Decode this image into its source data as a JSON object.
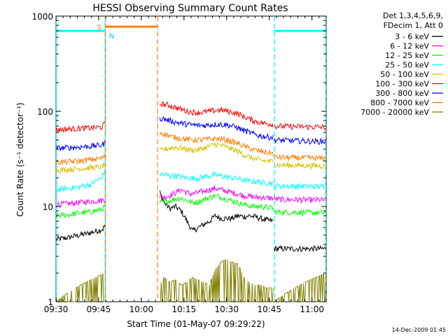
{
  "chart_data": {
    "type": "line",
    "title": "HESSI Observing Summary Count Rates",
    "xlabel": "Start Time (01-May-07 09:29:22)",
    "ylabel": "Count Rate (s⁻¹ detector⁻¹)",
    "ylog": true,
    "ylim": [
      1,
      1000
    ],
    "xlim": [
      30,
      125
    ],
    "x_tick_labels": [
      "09:30",
      "09:45",
      "10:00",
      "10:15",
      "10:30",
      "10:45",
      "11:00"
    ],
    "x_tick_values": [
      30,
      45,
      60,
      75,
      90,
      105,
      120
    ],
    "y_tick_labels": [
      "1",
      "10",
      "100",
      "1000"
    ],
    "y_tick_values": [
      1,
      10,
      100,
      1000
    ],
    "legend_header": [
      "Det 1,3,4,5,6,9,",
      "FDecim 1, Att 0"
    ],
    "legend_position": "top-right",
    "timestamp": "14-Dec-2009 01:45",
    "markers": {
      "night": [
        {
          "x0": 30,
          "x1": 47.4
        },
        {
          "x0": 106.7,
          "x1": 125
        }
      ],
      "saa": [
        {
          "x0": 47.4,
          "x1": 65.7
        }
      ],
      "flag_level": 700,
      "s_label": "S",
      "n_label": "N"
    },
    "series": [
      {
        "name": "3 - 6 keV",
        "color": "#000000",
        "segments": [
          {
            "x": [
              30,
              34,
              38,
              41,
              44,
              46.5,
              47.4
            ],
            "y": [
              4.5,
              4.7,
              5,
              5.2,
              5.5,
              5.8,
              6.5
            ]
          },
          {
            "x": [
              66.5,
              68,
              70,
              72,
              74,
              76,
              78,
              80,
              82,
              84,
              86,
              88,
              90,
              92,
              94,
              96,
              98,
              100,
              102,
              104,
              106.5
            ],
            "y": [
              14,
              11,
              9.5,
              10,
              9,
              7,
              5.5,
              6,
              6.5,
              7,
              8,
              7.5,
              7.5,
              7.5,
              8,
              7.8,
              8,
              7.8,
              7.5,
              7.2,
              7.0
            ]
          },
          {
            "x": [
              106.7,
              110,
              115,
              120,
              125
            ],
            "y": [
              3.6,
              3.6,
              3.6,
              3.6,
              3.6
            ]
          }
        ]
      },
      {
        "name": "6 - 12 keV",
        "color": "#ff00ff",
        "segments": [
          {
            "x": [
              30,
              34,
              38,
              42,
              46,
              47.4
            ],
            "y": [
              10.5,
              10.7,
              11,
              11.3,
              11.6,
              12
            ]
          },
          {
            "x": [
              66.5,
              68,
              70,
              72,
              74,
              76,
              78,
              80,
              82,
              84,
              86,
              88,
              90,
              92,
              94,
              96,
              98,
              100,
              102,
              104,
              106.5
            ],
            "y": [
              13,
              12.5,
              13,
              14,
              15,
              14,
              13.5,
              14,
              14.5,
              15,
              15.5,
              15,
              14.5,
              14,
              13.5,
              13,
              12.8,
              12.5,
              12.5,
              12.3,
              12.2
            ]
          },
          {
            "x": [
              106.7,
              110,
              115,
              120,
              125
            ],
            "y": [
              12,
              11.8,
              11.8,
              11.7,
              11.7
            ]
          }
        ]
      },
      {
        "name": "12 - 25 keV",
        "color": "#00ff00",
        "segments": [
          {
            "x": [
              30,
              34,
              38,
              42,
              46,
              47.4
            ],
            "y": [
              8,
              8.2,
              8.5,
              8.8,
              9.3,
              10
            ]
          },
          {
            "x": [
              66.5,
              68,
              70,
              72,
              74,
              76,
              78,
              80,
              82,
              84,
              86,
              88,
              90,
              92,
              94,
              96,
              98,
              100,
              102,
              104,
              106.5
            ],
            "y": [
              11,
              11.2,
              11.5,
              12,
              12.3,
              11.5,
              11,
              11.2,
              11.8,
              12.5,
              13,
              12.5,
              12,
              11.5,
              11,
              10.5,
              10.2,
              10,
              10,
              9.8,
              9.6
            ]
          },
          {
            "x": [
              106.7,
              110,
              115,
              120,
              125
            ],
            "y": [
              8.8,
              8.7,
              8.7,
              8.6,
              8.6
            ]
          }
        ]
      },
      {
        "name": "25 - 50 keV",
        "color": "#00ffff",
        "segments": [
          {
            "x": [
              30,
              34,
              38,
              42,
              46,
              47.4
            ],
            "y": [
              15,
              15.5,
              16,
              17,
              20,
              24
            ]
          },
          {
            "x": [
              66.5,
              68,
              70,
              72,
              74,
              76,
              78,
              80,
              82,
              84,
              86,
              88,
              90,
              92,
              94,
              96,
              98,
              100,
              102,
              104,
              106.5
            ],
            "y": [
              22,
              21.5,
              21,
              21,
              20.5,
              20,
              19.8,
              20,
              20.5,
              21,
              21.5,
              21,
              20.5,
              20,
              19.5,
              19,
              18.5,
              18.3,
              18,
              17.8,
              17.5
            ]
          },
          {
            "x": [
              106.7,
              110,
              115,
              120,
              125
            ],
            "y": [
              16.5,
              16.4,
              16.3,
              16.3,
              16.2
            ]
          }
        ]
      },
      {
        "name": "50 - 100 keV",
        "color": "#d8c000",
        "segments": [
          {
            "x": [
              30,
              34,
              38,
              42,
              46,
              47.4
            ],
            "y": [
              24,
              24.5,
              25,
              25.5,
              26,
              28
            ]
          },
          {
            "x": [
              66.5,
              68,
              70,
              72,
              74,
              76,
              78,
              80,
              82,
              84,
              86,
              88,
              90,
              92,
              94,
              96,
              98,
              100,
              102,
              104,
              106.5
            ],
            "y": [
              38,
              40,
              41,
              42,
              41,
              40,
              39,
              39.5,
              41,
              43,
              45,
              44,
              42,
              40,
              38,
              35,
              33,
              31.5,
              30.5,
              30,
              29.5
            ]
          },
          {
            "x": [
              106.7,
              110,
              115,
              120,
              125
            ],
            "y": [
              27.5,
              27.2,
              27,
              26.8,
              26.7
            ]
          }
        ]
      },
      {
        "name": "100 - 300 keV",
        "color": "#ff0000",
        "segments": [
          {
            "x": [
              30,
              34,
              38,
              42,
              46,
              47.4
            ],
            "y": [
              64,
              65,
              66,
              67,
              68,
              75
            ]
          },
          {
            "x": [
              66.5,
              68,
              70,
              72,
              74,
              76,
              78,
              80,
              82,
              84,
              86,
              88,
              90,
              92,
              94,
              96,
              98,
              100,
              102,
              104,
              106.5
            ],
            "y": [
              120,
              118,
              115,
              110,
              105,
              100,
              98,
              97,
              98,
              100,
              102,
              103,
              101,
              98,
              94,
              88,
              83,
              79,
              76,
              74,
              73
            ]
          },
          {
            "x": [
              106.7,
              110,
              115,
              120,
              125
            ],
            "y": [
              70,
              69.5,
              69,
              68.5,
              68
            ]
          }
        ]
      },
      {
        "name": "300 - 800 keV",
        "color": "#0000ff",
        "segments": [
          {
            "x": [
              30,
              34,
              38,
              42,
              46,
              47.4
            ],
            "y": [
              41,
              41.5,
              42,
              43,
              44,
              47
            ]
          },
          {
            "x": [
              66.5,
              68,
              70,
              72,
              74,
              76,
              78,
              80,
              82,
              84,
              86,
              88,
              90,
              92,
              94,
              96,
              98,
              100,
              102,
              104,
              106.5
            ],
            "y": [
              85,
              83,
              80,
              77,
              75,
              73,
              72,
              71,
              71,
              72,
              73,
              73,
              72,
              70,
              67,
              63,
              60,
              57,
              55,
              54,
              53
            ]
          },
          {
            "x": [
              106.7,
              110,
              115,
              120,
              125
            ],
            "y": [
              50,
              49.5,
              49,
              48.5,
              48
            ]
          }
        ]
      },
      {
        "name": "800 - 7000 keV",
        "color": "#ff8000",
        "segments": [
          {
            "x": [
              30,
              34,
              38,
              42,
              46,
              47.4
            ],
            "y": [
              29,
              29.5,
              30,
              31,
              32,
              34
            ]
          },
          {
            "x": [
              66.5,
              68,
              70,
              72,
              74,
              76,
              78,
              80,
              82,
              84,
              86,
              88,
              90,
              92,
              94,
              96,
              98,
              100,
              102,
              104,
              106.5
            ],
            "y": [
              60,
              58,
              55,
              53,
              52,
              51,
              50,
              50,
              50.5,
              51,
              51.5,
              51,
              50,
              48,
              46,
              43,
              41,
              39,
              38,
              37,
              36
            ]
          },
          {
            "x": [
              106.7,
              110,
              115,
              120,
              125
            ],
            "y": [
              33,
              32.8,
              32.5,
              32.3,
              32
            ]
          }
        ]
      },
      {
        "name": "7000 - 20000 keV",
        "color": "#808000",
        "segments": [
          {
            "x": [
              30,
              47.4
            ],
            "y": [
              1,
              2
            ]
          },
          {
            "x": [
              66.5,
              68,
              70,
              72,
              74,
              76,
              78,
              80,
              82,
              84,
              86,
              88,
              90,
              92,
              94,
              96,
              98,
              100,
              102,
              104,
              106.5
            ],
            "y": [
              1.5,
              1.8,
              1.6,
              1.7,
              1.5,
              1.6,
              1.8,
              1.7,
              1.6,
              1.5,
              2.2,
              2.6,
              2.8,
              2.6,
              2.5,
              1.8,
              1.6,
              1.5,
              1.5,
              1.4,
              1.4
            ]
          },
          {
            "x": [
              106.7,
              125
            ],
            "y": [
              1,
              2
            ]
          }
        ]
      }
    ]
  }
}
